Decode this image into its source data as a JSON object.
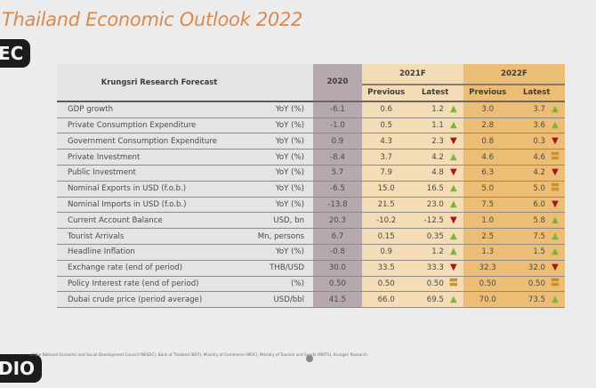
{
  "slide": {
    "title": "Thailand Economic Outlook 2022",
    "rec_badge": "EC",
    "audio_badge": "DIO",
    "source_note": "...of the National Economic and Social Development Council (NESDC), Bank of Thailand (BOT), Ministry of Commerce (MOC), Ministry of Tourism and Sports (MOTS), Krungsri Research"
  },
  "table": {
    "header_title": "Krungsri Research Forecast",
    "col_2020": "2020",
    "col_2021": "2021F",
    "col_2022": "2022F",
    "sub_previous": "Previous",
    "sub_latest": "Latest",
    "colors": {
      "up": "#7cb53a",
      "down": "#a3161a",
      "unchanged": "#c9922f",
      "col2020": "#b6a9ad",
      "col2021": "#f4dcb6",
      "col2022": "#ecbe75"
    },
    "rows": [
      {
        "label": "GDP growth",
        "unit": "YoY (%)",
        "y2020": "-6.1",
        "y2021_prev": "0.6",
        "y2021_latest": "1.2",
        "y2021_dir": "up",
        "y2022_prev": "3.0",
        "y2022_latest": "3.7",
        "y2022_dir": "up"
      },
      {
        "label": "Private Consumption Expenditure",
        "unit": "YoY (%)",
        "y2020": "-1.0",
        "y2021_prev": "0.5",
        "y2021_latest": "1.1",
        "y2021_dir": "up",
        "y2022_prev": "2.8",
        "y2022_latest": "3.6",
        "y2022_dir": "up"
      },
      {
        "label": "Government Consumption Expenditure",
        "unit": "YoY (%)",
        "y2020": "0.9",
        "y2021_prev": "4.3",
        "y2021_latest": "2.3",
        "y2021_dir": "down",
        "y2022_prev": "0.8",
        "y2022_latest": "0.3",
        "y2022_dir": "down"
      },
      {
        "label": "Private Investment",
        "unit": "YoY (%)",
        "y2020": "-8.4",
        "y2021_prev": "3.7",
        "y2021_latest": "4.2",
        "y2021_dir": "up",
        "y2022_prev": "4.6",
        "y2022_latest": "4.6",
        "y2022_dir": "eq"
      },
      {
        "label": "Public Investment",
        "unit": "YoY (%)",
        "y2020": "5.7",
        "y2021_prev": "7.9",
        "y2021_latest": "4.8",
        "y2021_dir": "down",
        "y2022_prev": "6.3",
        "y2022_latest": "4.2",
        "y2022_dir": "down"
      },
      {
        "label": "Nominal Exports in USD (f.o.b.)",
        "unit": "YoY (%)",
        "y2020": "-6.5",
        "y2021_prev": "15.0",
        "y2021_latest": "16.5",
        "y2021_dir": "up",
        "y2022_prev": "5.0",
        "y2022_latest": "5.0",
        "y2022_dir": "eq"
      },
      {
        "label": "Nominal Imports in USD (f.o.b.)",
        "unit": "YoY (%)",
        "y2020": "-13.8",
        "y2021_prev": "21.5",
        "y2021_latest": "23.0",
        "y2021_dir": "up",
        "y2022_prev": "7.5",
        "y2022_latest": "6.0",
        "y2022_dir": "down"
      },
      {
        "label": "Current Account Balance",
        "unit": "USD, bn",
        "y2020": "20.3",
        "y2021_prev": "-10.2",
        "y2021_latest": "-12.5",
        "y2021_dir": "down",
        "y2022_prev": "1.0",
        "y2022_latest": "5.8",
        "y2022_dir": "up"
      },
      {
        "label": "Tourist Arrivals",
        "unit": "Mn, persons",
        "y2020": "6.7",
        "y2021_prev": "0.15",
        "y2021_latest": "0.35",
        "y2021_dir": "up",
        "y2022_prev": "2.5",
        "y2022_latest": "7.5",
        "y2022_dir": "up"
      },
      {
        "label": "Headline Inflation",
        "unit": "YoY (%)",
        "y2020": "-0.8",
        "y2021_prev": "0.9",
        "y2021_latest": "1.2",
        "y2021_dir": "up",
        "y2022_prev": "1.3",
        "y2022_latest": "1.5",
        "y2022_dir": "up"
      },
      {
        "label": "Exchange rate (end of period)",
        "unit": "THB/USD",
        "y2020": "30.0",
        "y2021_prev": "33.5",
        "y2021_latest": "33.3",
        "y2021_dir": "down",
        "y2022_prev": "32.3",
        "y2022_latest": "32.0",
        "y2022_dir": "down"
      },
      {
        "label": "Policy Interest rate (end of period)",
        "unit": "(%)",
        "y2020": "0.50",
        "y2021_prev": "0.50",
        "y2021_latest": "0.50",
        "y2021_dir": "eq",
        "y2022_prev": "0.50",
        "y2022_latest": "0.50",
        "y2022_dir": "eq"
      },
      {
        "label": "Dubai crude price (period average)",
        "unit": "USD/bbl",
        "y2020": "41.5",
        "y2021_prev": "66.0",
        "y2021_latest": "69.5",
        "y2021_dir": "up",
        "y2022_prev": "70.0",
        "y2022_latest": "73.5",
        "y2022_dir": "up"
      }
    ]
  }
}
